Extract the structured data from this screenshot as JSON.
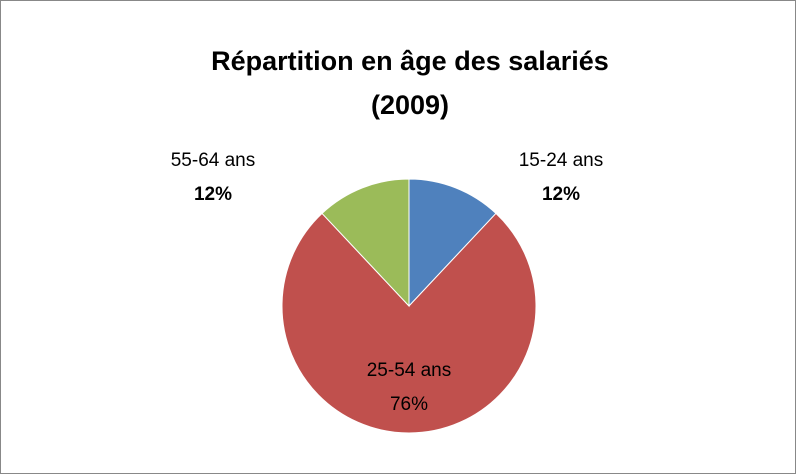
{
  "chart_data": {
    "type": "pie",
    "title": "Répartition en âge des salariés (2009)",
    "categories": [
      "15-24 ans",
      "25-54 ans",
      "55-64 ans"
    ],
    "values": [
      12,
      76,
      12
    ],
    "value_labels": [
      "12%",
      "76%",
      "12%"
    ],
    "colors": [
      "#4f81bd",
      "#c0504d",
      "#9bbb59"
    ]
  }
}
